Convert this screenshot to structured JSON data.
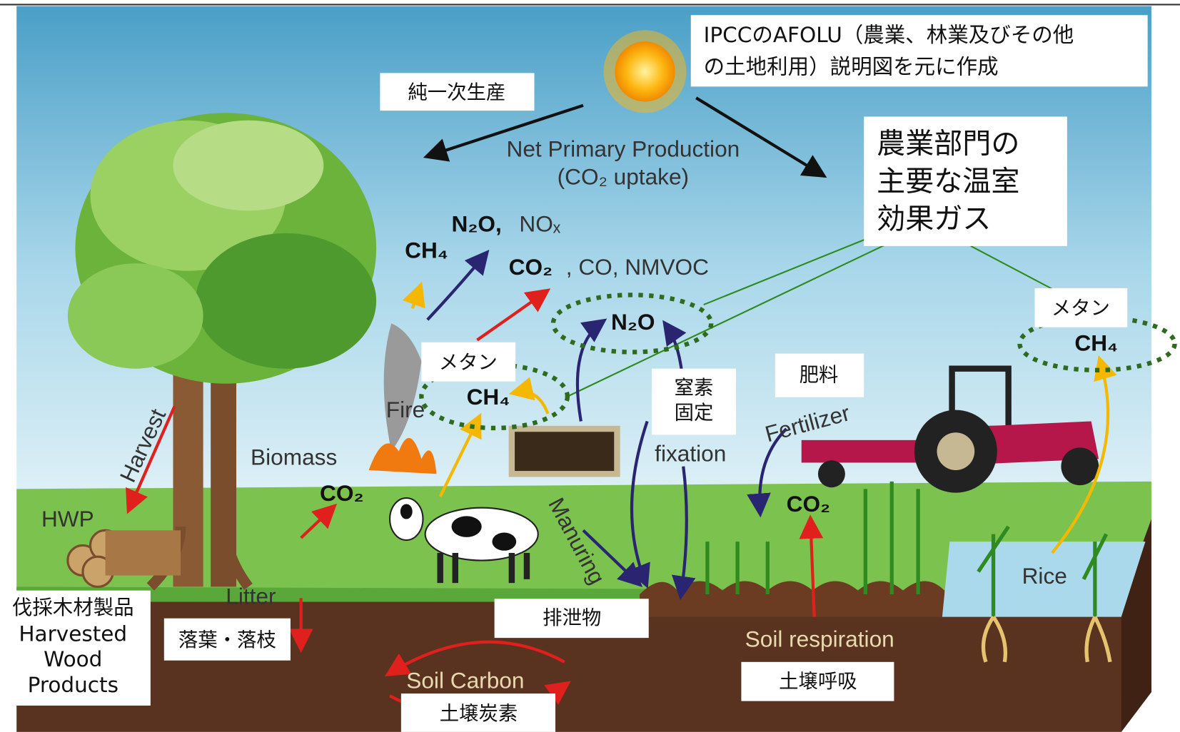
{
  "note": {
    "lines": [
      "IPCCのAFOLU（農業、林業及びその他",
      "の土地利用）説明図を元に作成"
    ]
  },
  "callouts": {
    "npp_ja": "純一次生産",
    "ghg_ja": [
      "農業部門の",
      "主要な温室",
      "効果ガス"
    ],
    "methane_ja": [
      "メタン",
      "メタン"
    ],
    "n_fixation_ja": [
      "窒素",
      "固定"
    ],
    "fertilizer_ja": "肥料",
    "hwp_ja": "伐採木材製品",
    "hwp_en": [
      "Harvested",
      "Wood",
      "Products"
    ],
    "litter_ja": "落葉・落枝",
    "manure_ja": "排泄物",
    "soil_respiration_ja": "土壌呼吸",
    "soil_carbon_ja": "土壌炭素"
  },
  "diagram": {
    "npp": [
      "Net Primary Production",
      "(CO₂ uptake)"
    ],
    "fire_n2o": "N₂O,",
    "fire_nox": "NOₓ",
    "fire_ch4": "CH₄",
    "fire_co2": "CO₂",
    "fire_others": ", CO, NMVOC",
    "n2o": "N₂O",
    "livestock_ch4": "CH₄",
    "rice_ch4": "CH₄",
    "fire": "Fire",
    "biomass": "Biomass",
    "biomass_co2": "CO₂",
    "harvest": "Harvest",
    "hwp": "HWP",
    "litter": "Litter",
    "manuring": "Manuring",
    "fixation": "fixation",
    "fertilizer": "Fertilizer",
    "soil_co2": "CO₂",
    "soil_respiration": "Soil respiration",
    "soil_carbon": "Soil Carbon",
    "rice": "Rice"
  }
}
